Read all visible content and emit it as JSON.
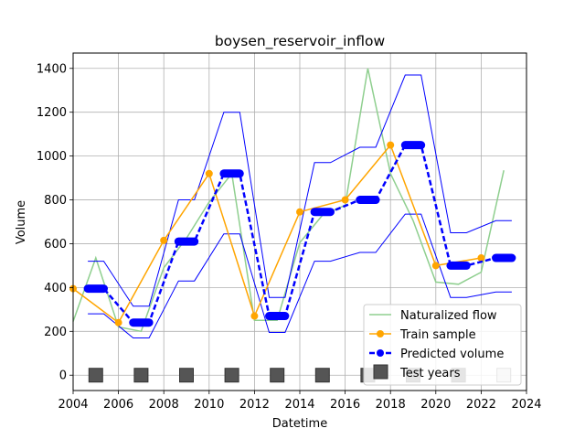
{
  "chart_data": {
    "type": "line",
    "title": "boysen_reservoir_inflow",
    "xlabel": "Datetime",
    "ylabel": "Volume",
    "xlim": [
      2004,
      2024
    ],
    "ylim": [
      -70,
      1470
    ],
    "x_ticks": [
      2004,
      2006,
      2008,
      2010,
      2012,
      2014,
      2016,
      2018,
      2020,
      2022,
      2024
    ],
    "x_tick_labels": [
      "2004",
      "2006",
      "2008",
      "2010",
      "2012",
      "2014",
      "2016",
      "2018",
      "2020",
      "2022",
      "2024"
    ],
    "y_ticks": [
      0,
      200,
      400,
      600,
      800,
      1000,
      1200,
      1400
    ],
    "y_tick_labels": [
      "0",
      "200",
      "400",
      "600",
      "800",
      "1000",
      "1200",
      "1400"
    ],
    "grid": true,
    "legend_position": "lower-right",
    "series": {
      "naturalized": {
        "name": "Naturalized flow",
        "color": "#8fcf8f",
        "x": [
          2004,
          2005,
          2006,
          2007,
          2008,
          2009,
          2010,
          2011,
          2012,
          2013,
          2014,
          2015,
          2016,
          2017,
          2018,
          2019,
          2020,
          2021,
          2022,
          2023
        ],
        "y": [
          245,
          535,
          220,
          200,
          490,
          625,
          790,
          920,
          250,
          250,
          605,
          730,
          775,
          1400,
          920,
          705,
          425,
          415,
          470,
          935
        ]
      },
      "train": {
        "name": "Train sample",
        "color": "#ffa500",
        "x": [
          2004,
          2006,
          2008,
          2010,
          2012,
          2014,
          2016,
          2018,
          2020,
          2022
        ],
        "y": [
          395,
          240,
          615,
          920,
          270,
          745,
          800,
          1050,
          500,
          535
        ]
      },
      "predicted": {
        "name": "Predicted volume",
        "color": "#0000ff",
        "x": [
          2005,
          2007,
          2009,
          2011,
          2013,
          2015,
          2017,
          2019,
          2021,
          2023
        ],
        "y": [
          395,
          240,
          610,
          920,
          270,
          745,
          800,
          1050,
          500,
          535
        ],
        "upper": [
          520,
          315,
          800,
          1200,
          355,
          970,
          1040,
          1370,
          650,
          705
        ],
        "lower": [
          280,
          170,
          430,
          645,
          195,
          520,
          560,
          735,
          355,
          380
        ],
        "marker_halfwidth_years": 0.35
      },
      "test_years": {
        "name": "Test years",
        "color": "#555555",
        "x": [
          2005,
          2007,
          2009,
          2011,
          2013,
          2015,
          2017,
          2019,
          2021,
          2023
        ],
        "y": [
          0,
          0,
          0,
          0,
          0,
          0,
          0,
          0,
          0,
          0
        ]
      }
    }
  }
}
